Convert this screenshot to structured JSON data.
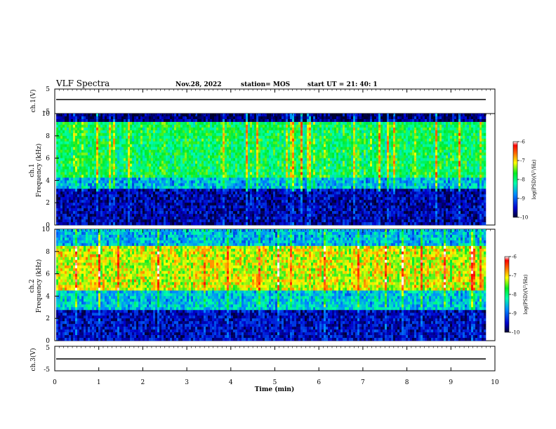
{
  "header": {
    "title": "VLF Spectra",
    "date": "Nov.28, 2022",
    "station": "station= MOS",
    "start": "start  UT =   21: 40: 1"
  },
  "colors": {
    "dark": "#000033",
    "low": "#0000cc",
    "mid": "#00ff66",
    "high": "#ffff00",
    "peak": "#ff0000"
  },
  "chart_data": [
    {
      "type": "line",
      "name": "ch1-waveform",
      "ylabel": "ch.1(V)",
      "ylim": [
        -5,
        5
      ],
      "yticks": [
        "5",
        "-5"
      ],
      "x": [
        0,
        10
      ],
      "y": [
        0,
        0
      ]
    },
    {
      "type": "heatmap",
      "name": "ch1-spectrogram",
      "ylabel_line1": "ch.1",
      "ylabel_line2": "Frequency (kHz)",
      "ylim": [
        0,
        10
      ],
      "yticks": [
        "0",
        "2",
        "4",
        "6",
        "8",
        "10"
      ],
      "xlim": [
        0,
        10
      ],
      "colorbar": {
        "label": "log(PSD)(V²/Hz)",
        "range": [
          -10,
          -6
        ],
        "ticks": [
          "-6",
          "-7",
          "-8",
          "-9",
          "-10"
        ]
      },
      "bands": [
        {
          "from_khz": 0,
          "to_khz": 3.3,
          "level": -9.6
        },
        {
          "from_khz": 3.3,
          "to_khz": 4.2,
          "level": -8.6
        },
        {
          "from_khz": 4.2,
          "to_khz": 9.2,
          "level": -7.9
        },
        {
          "from_khz": 9.2,
          "to_khz": 10,
          "level": -9.8
        }
      ]
    },
    {
      "type": "heatmap",
      "name": "ch2-spectrogram",
      "ylabel_line1": "ch.2",
      "ylabel_line2": "Frequency (kHz)",
      "ylim": [
        0,
        10
      ],
      "yticks": [
        "0",
        "2",
        "4",
        "6",
        "8",
        "10"
      ],
      "xlim": [
        0,
        10
      ],
      "colorbar": {
        "label": "log(PSD)(V²/Hz)",
        "range": [
          -10,
          -6
        ],
        "ticks": [
          "-6",
          "-7",
          "-8",
          "-9",
          "-10"
        ]
      },
      "bands": [
        {
          "from_khz": 0,
          "to_khz": 2.8,
          "level": -9.5
        },
        {
          "from_khz": 2.8,
          "to_khz": 4.5,
          "level": -8.5
        },
        {
          "from_khz": 4.5,
          "to_khz": 8.5,
          "level": -7.2
        },
        {
          "from_khz": 8.5,
          "to_khz": 10,
          "level": -8.6
        }
      ]
    },
    {
      "type": "line",
      "name": "ch3-waveform",
      "ylabel": "ch.3(V)",
      "ylim": [
        -5,
        5
      ],
      "yticks": [
        "5",
        "-5"
      ],
      "x": [
        0,
        10
      ],
      "y": [
        0,
        0
      ]
    }
  ],
  "xaxis": {
    "label": "Time (min)",
    "ticks": [
      "0",
      "1",
      "2",
      "3",
      "4",
      "5",
      "6",
      "7",
      "8",
      "9",
      "10"
    ]
  }
}
